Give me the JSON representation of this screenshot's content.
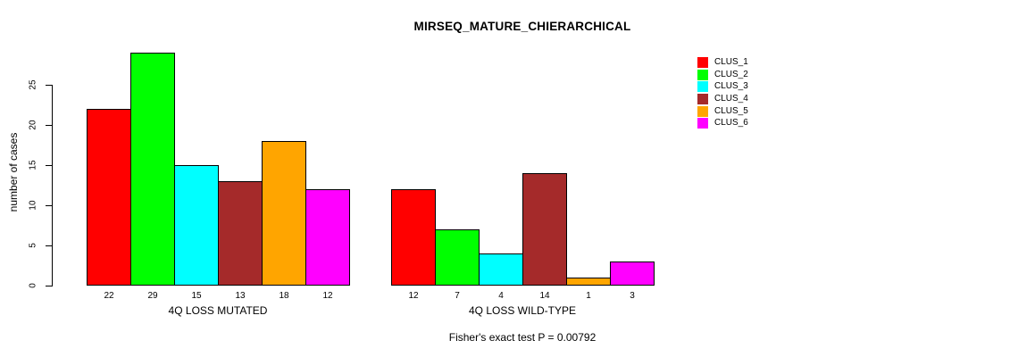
{
  "title": "MIRSEQ_MATURE_CHIERARCHICAL",
  "y_axis": {
    "label": "number of cases",
    "ticks": [
      0,
      5,
      10,
      15,
      20,
      25
    ]
  },
  "caption": "Fisher's exact test P = 0.00792",
  "legend": {
    "items": [
      {
        "label": "CLUS_1",
        "color": "#FF0000"
      },
      {
        "label": "CLUS_2",
        "color": "#00FF00"
      },
      {
        "label": "CLUS_3",
        "color": "#00FFFF"
      },
      {
        "label": "CLUS_4",
        "color": "#A52A2A"
      },
      {
        "label": "CLUS_5",
        "color": "#FFA500"
      },
      {
        "label": "CLUS_6",
        "color": "#FF00FF"
      }
    ]
  },
  "chart_data": {
    "type": "bar",
    "title": "MIRSEQ_MATURE_CHIERARCHICAL",
    "ylabel": "number of cases",
    "ylim": [
      0,
      29
    ],
    "yticks": [
      0,
      5,
      10,
      15,
      20,
      25
    ],
    "grid": false,
    "legend_position": "top-right",
    "series_labels": [
      "CLUS_1",
      "CLUS_2",
      "CLUS_3",
      "CLUS_4",
      "CLUS_5",
      "CLUS_6"
    ],
    "series_colors": [
      "#FF0000",
      "#00FF00",
      "#00FFFF",
      "#A52A2A",
      "#FFA500",
      "#FF00FF"
    ],
    "groups": [
      {
        "label": "4Q LOSS MUTATED",
        "values": [
          22,
          29,
          15,
          13,
          18,
          12
        ],
        "bar_labels": [
          "22",
          "29",
          "15",
          "13",
          "18",
          "12"
        ]
      },
      {
        "label": "4Q LOSS WILD-TYPE",
        "values": [
          12,
          7,
          4,
          14,
          1,
          3
        ],
        "bar_labels": [
          "12",
          "7",
          "4",
          "14",
          "1",
          "3"
        ]
      }
    ],
    "annotation": "Fisher's exact test P = 0.00792"
  }
}
